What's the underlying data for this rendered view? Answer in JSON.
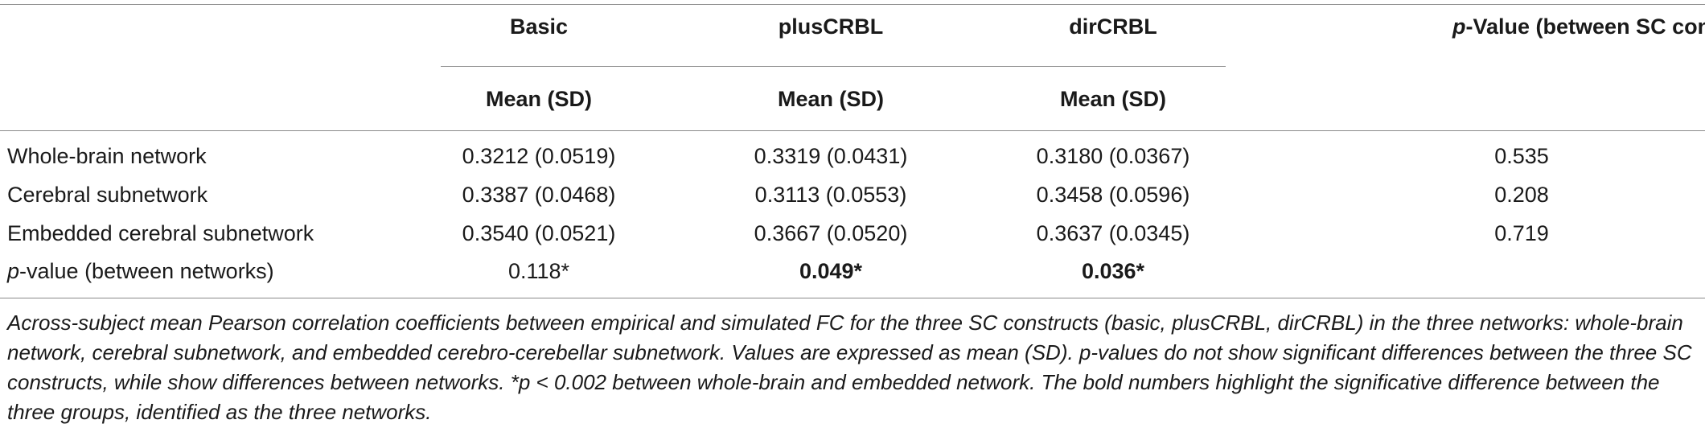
{
  "header": {
    "groups": [
      "Basic",
      "plusCRBL",
      "dirCRBL"
    ],
    "subheader": "Mean (SD)",
    "pvalue_header_italic": "p",
    "pvalue_header_rest": "-Value (between SC constructs)"
  },
  "rows": [
    {
      "label": "Whole-brain network",
      "basic": "0.3212 (0.0519)",
      "plus": "0.3319 (0.0431)",
      "dir": "0.3180 (0.0367)",
      "p": "0.535"
    },
    {
      "label": "Cerebral subnetwork",
      "basic": "0.3387 (0.0468)",
      "plus": "0.3113 (0.0553)",
      "dir": "0.3458 (0.0596)",
      "p": "0.208"
    },
    {
      "label": "Embedded cerebral subnetwork",
      "basic": "0.3540 (0.0521)",
      "plus": "0.3667 (0.0520)",
      "dir": "0.3637 (0.0345)",
      "p": "0.719"
    }
  ],
  "pvalue_row": {
    "label_italic": "p",
    "label_rest": "-value (between networks)",
    "basic": "0.118*",
    "plus": "0.049*",
    "dir": "0.036*"
  },
  "caption": "Across-subject mean Pearson correlation coefficients between empirical and simulated FC for the three SC constructs (basic, plusCRBL, dirCRBL) in the three networks: whole-brain network, cerebral subnetwork, and embedded cerebro-cerebellar subnetwork. Values are expressed as mean (SD). p-values do not show significant differences between the three SC constructs, while show differences between networks. *p < 0.002 between whole-brain and embedded network. The bold numbers highlight the significative difference between the three groups, identified as the three networks."
}
